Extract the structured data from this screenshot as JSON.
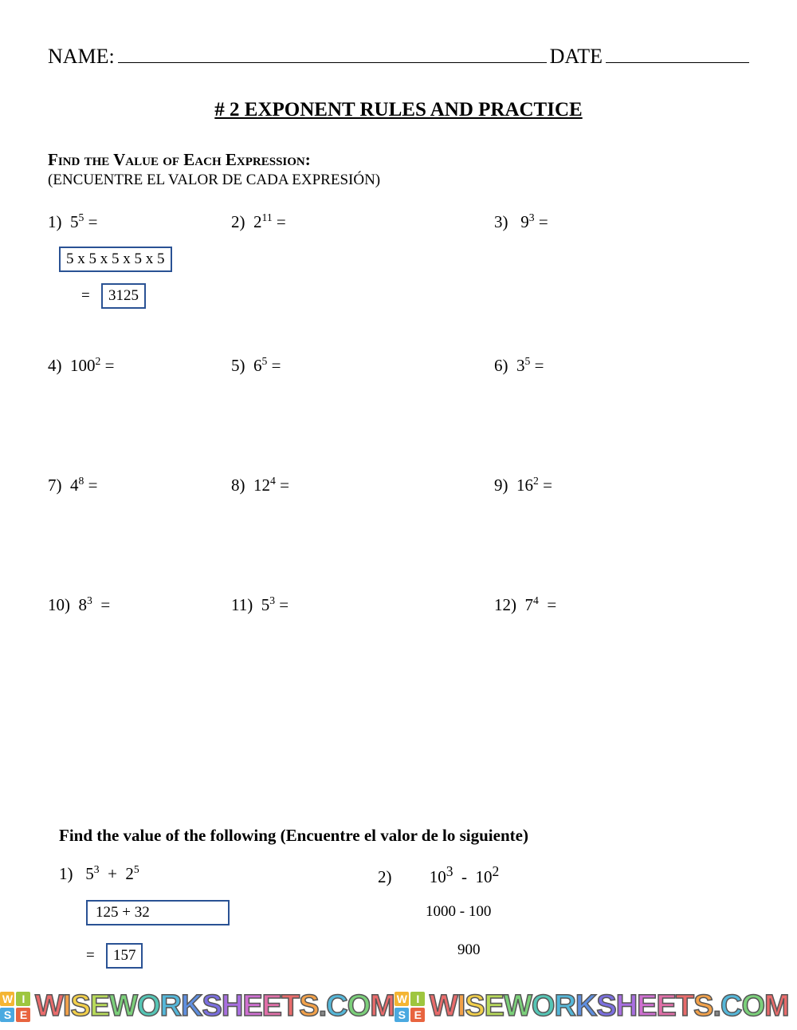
{
  "header": {
    "name_label": "NAME:",
    "date_label": "DATE"
  },
  "title": "# 2  EXPONENT RULES AND PRACTICE",
  "instruction_en_prefix": "F",
  "instruction_en": "Find the Value of Each Expression:",
  "instruction_es": "(ENCUENTRE EL VALOR DE CADA EXPRESIÓN)",
  "problems": [
    {
      "n": "1)",
      "base": "5",
      "exp": "5"
    },
    {
      "n": "2)",
      "base": "2",
      "exp": "11"
    },
    {
      "n": "3)",
      "base": "9",
      "exp": "3"
    },
    {
      "n": "4)",
      "base": "100",
      "exp": "2"
    },
    {
      "n": "5)",
      "base": "6",
      "exp": "5"
    },
    {
      "n": "6)",
      "base": "3",
      "exp": "5"
    },
    {
      "n": "7)",
      "base": "4",
      "exp": "8"
    },
    {
      "n": "8)",
      "base": "12",
      "exp": "4"
    },
    {
      "n": "9)",
      "base": "16",
      "exp": "2"
    },
    {
      "n": "10)",
      "base": "8",
      "exp": "3"
    },
    {
      "n": "11)",
      "base": "5",
      "exp": "3"
    },
    {
      "n": "12)",
      "base": "7",
      "exp": "4"
    }
  ],
  "worked_p1": {
    "expansion": "5 x 5 x 5 x 5 x 5",
    "eq": "=",
    "answer": "3125"
  },
  "section2_title": "Find the value of the following  (Encuentre el valor de lo siguiente)",
  "s2a": {
    "n": "1)",
    "b1": "5",
    "e1": "3",
    "op": "+",
    "b2": "2",
    "e2": "5",
    "step1_box": "125       +     32",
    "eq": "=",
    "answer": "157"
  },
  "s2b": {
    "n": "2)",
    "b1": "10",
    "e1": "3",
    "op": "-",
    "b2": "10",
    "e2": "2",
    "step1": "1000  -  100",
    "answer": "900"
  },
  "watermark": {
    "logo": [
      "W",
      "I",
      "S",
      "E"
    ],
    "logo_colors": [
      "#f4b533",
      "#9ec63f",
      "#4aa9e0",
      "#e8643f"
    ],
    "text_chars": [
      "W",
      "I",
      "S",
      "E",
      "W",
      "O",
      "R",
      "K",
      "S",
      "H",
      "E",
      "E",
      "T",
      "S",
      ".",
      "C",
      "O",
      "M"
    ],
    "text_colors": [
      "#e86b6b",
      "#f2a14a",
      "#f2cf4a",
      "#b7d95a",
      "#7bcf7a",
      "#55c5b5",
      "#55b7d9",
      "#5f8fe0",
      "#7b6fe0",
      "#a86fe0",
      "#cf6fd1",
      "#e06fa8",
      "#e86b6b",
      "#f2a14a",
      "#888",
      "#55b7d9",
      "#7bcf7a",
      "#e86b6b"
    ]
  },
  "style": {
    "box_border_color": "#2a5294",
    "text_color": "#000000",
    "background": "#ffffff"
  }
}
